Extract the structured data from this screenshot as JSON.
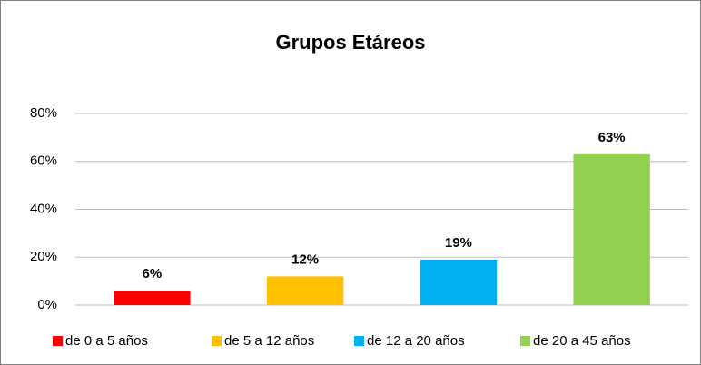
{
  "chart_data": {
    "type": "bar",
    "title": "Grupos Etáreos",
    "categories": [
      "de 0 a 5 años",
      "de 5 a 12 años",
      "de 12 a 20 años",
      "de 20 a 45 años"
    ],
    "values": [
      6,
      12,
      19,
      63
    ],
    "value_labels": [
      "6%",
      "12%",
      "19%",
      "63%"
    ],
    "colors": [
      "#ff0000",
      "#ffc000",
      "#00b0f0",
      "#92d050"
    ],
    "ylim": [
      0,
      80
    ],
    "yticks": [
      {
        "value": 0,
        "label": "0%"
      },
      {
        "value": 20,
        "label": "20%"
      },
      {
        "value": 40,
        "label": "40%"
      },
      {
        "value": 60,
        "label": "60%"
      },
      {
        "value": 80,
        "label": "80%"
      }
    ],
    "grid": true,
    "legend": "bottom"
  }
}
